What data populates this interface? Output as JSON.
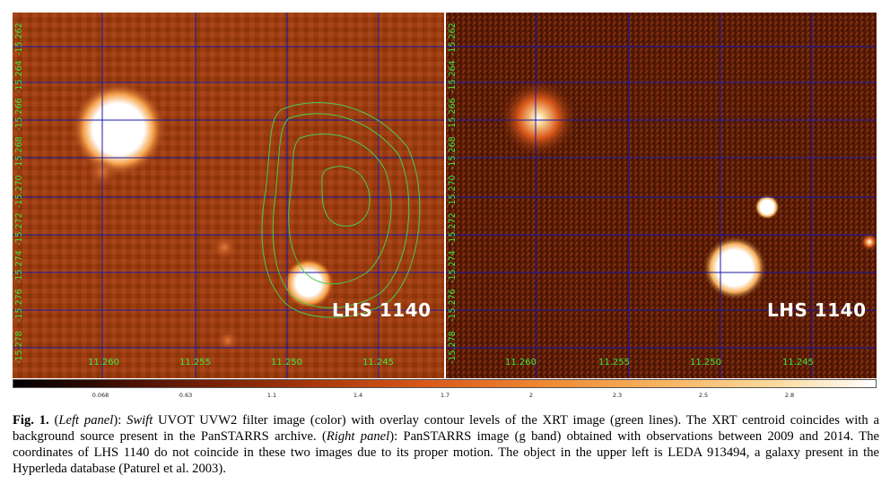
{
  "left_panel": {
    "object_label": "LHS 1140",
    "dec_ticks": [
      "-15.262",
      "-15.264",
      "-15.266",
      "-15.268",
      "-15.270",
      "-15.272",
      "-15.274",
      "-15.276",
      "-15.278"
    ],
    "ra_ticks": [
      "11.260",
      "11.255",
      "11.250",
      "11.245"
    ]
  },
  "right_panel": {
    "object_label": "LHS 1140",
    "dec_ticks": [
      "-15.262",
      "-15.264",
      "-15.266",
      "-15.268",
      "-15.270",
      "-15.272",
      "-15.274",
      "-15.276",
      "-15.278"
    ],
    "ra_ticks": [
      "11.260",
      "11.255",
      "11.250",
      "11.245"
    ]
  },
  "colorbar": {
    "ticks": [
      "0.068",
      "0.63",
      "1.1",
      "1.4",
      "1.7",
      "2",
      "2.3",
      "2.5",
      "2.8"
    ]
  },
  "caption": {
    "fig_label": "Fig. 1.",
    "text_1": " (",
    "left_panel_label": "Left panel",
    "text_2": "): ",
    "swift": "Swift",
    "text_3": " UVOT UVW2 filter image (color) with overlay contour levels of the XRT image (green lines). The XRT centroid coincides with a background source present in the PanSTARRS archive. (",
    "right_panel_label": "Right panel",
    "text_4": "): PanSTARRS image (g band) obtained with observations between 2009 and 2014. The coordinates of LHS 1140 do not coincide in these two images due to its proper motion. The object in the upper left is LEDA 913494, a galaxy present in the Hyperleda database (Paturel et al. 2003)."
  },
  "colors": {
    "label_green": "#3ee83e",
    "grid_blue": "#1a1aa8",
    "contour_green": "#4ccc4c"
  }
}
